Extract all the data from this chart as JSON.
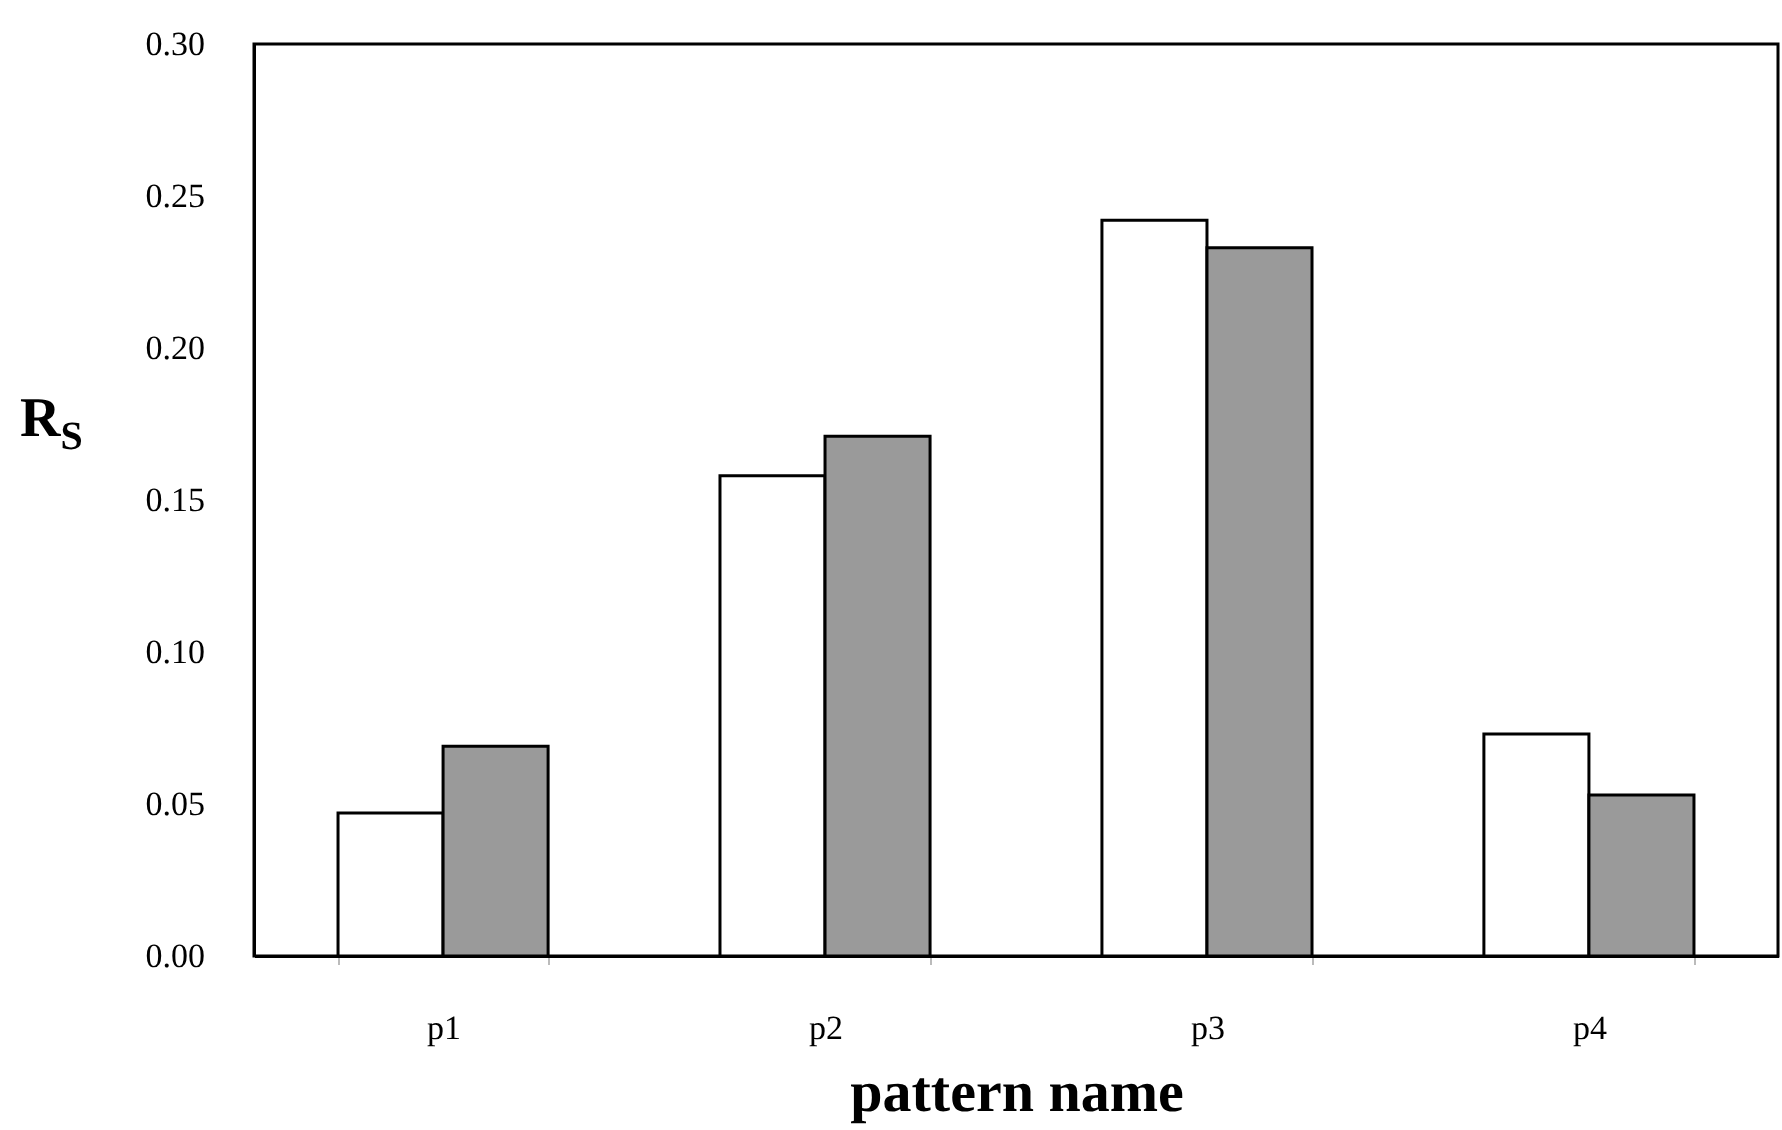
{
  "chart_data": {
    "type": "bar",
    "xlabel": "pattern name",
    "ylabel": "R$_{S}$",
    "categories": [
      "p1",
      "p2",
      "p3",
      "p4"
    ],
    "series": [
      {
        "color": "#ffffff",
        "values": [
          0.047,
          0.158,
          0.242,
          0.073
        ]
      },
      {
        "color": "#9a9a9a",
        "values": [
          0.069,
          0.171,
          0.233,
          0.053
        ]
      }
    ],
    "ylim": [
      0,
      0.3
    ],
    "yticks": [
      {
        "value": 0,
        "label": "0.00"
      },
      0.05,
      {
        "value": 0.1,
        "label": "0.10"
      },
      0.15,
      {
        "value": 0.2,
        "label": "0.20"
      },
      0.25,
      {
        "value": 0.3,
        "label": "0.30"
      }
    ],
    "grid": false
  }
}
